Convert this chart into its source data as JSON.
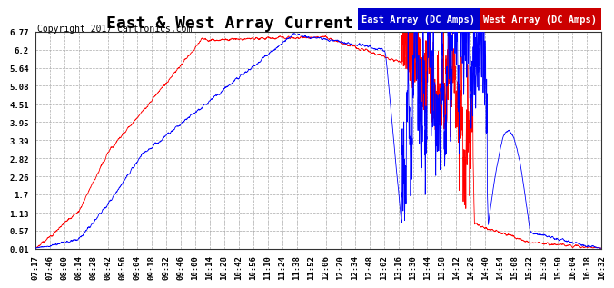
{
  "title": "East & West Array Current  Sat Jan 7  16:43",
  "copyright": "Copyright 2017 Cartronics.com",
  "legend_east": "East Array (DC Amps)",
  "legend_west": "West Array (DC Amps)",
  "east_color": "#0000ff",
  "west_color": "#ff0000",
  "legend_east_bg": "#0000cc",
  "legend_west_bg": "#cc0000",
  "background_color": "#ffffff",
  "plot_bg_color": "#ffffff",
  "grid_color": "#aaaaaa",
  "ylim": [
    0.01,
    6.77
  ],
  "yticks": [
    0.01,
    0.57,
    1.13,
    1.7,
    2.26,
    2.82,
    3.39,
    3.95,
    4.51,
    5.08,
    5.64,
    6.2,
    6.77
  ],
  "xtick_labels": [
    "07:17",
    "07:46",
    "08:00",
    "08:14",
    "08:28",
    "08:42",
    "08:56",
    "09:04",
    "09:18",
    "09:32",
    "09:46",
    "10:00",
    "10:14",
    "10:28",
    "10:42",
    "10:56",
    "11:10",
    "11:24",
    "11:38",
    "11:52",
    "12:06",
    "12:20",
    "12:34",
    "12:48",
    "13:02",
    "13:16",
    "13:30",
    "13:44",
    "13:58",
    "14:12",
    "14:26",
    "14:40",
    "14:54",
    "15:08",
    "15:22",
    "15:36",
    "15:50",
    "16:04",
    "16:18",
    "16:32"
  ],
  "title_fontsize": 13,
  "copyright_fontsize": 7,
  "tick_fontsize": 6.5,
  "legend_fontsize": 7.5
}
